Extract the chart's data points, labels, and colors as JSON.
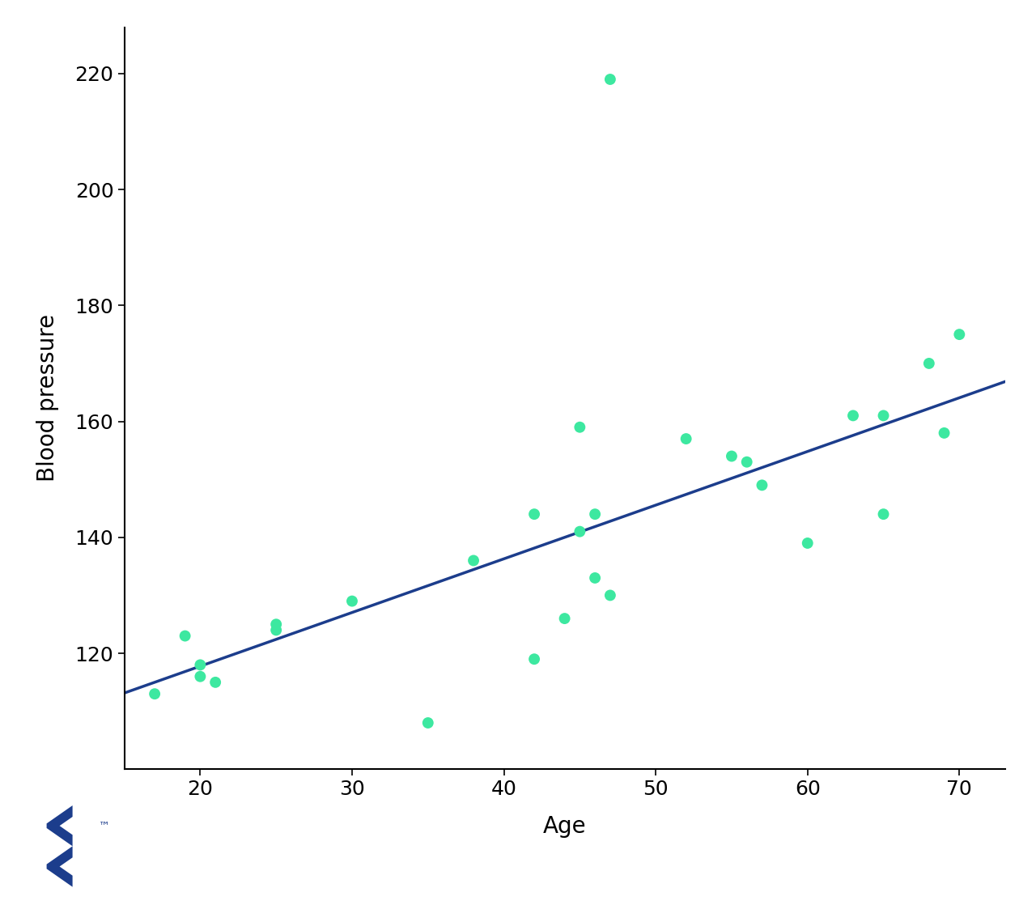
{
  "scatter_x": [
    17,
    19,
    20,
    20,
    21,
    25,
    25,
    30,
    35,
    38,
    42,
    42,
    44,
    45,
    45,
    46,
    46,
    47,
    47,
    52,
    55,
    56,
    57,
    60,
    63,
    65,
    65,
    68,
    69,
    70
  ],
  "scatter_y": [
    113,
    123,
    116,
    118,
    115,
    125,
    124,
    129,
    108,
    136,
    144,
    119,
    126,
    159,
    141,
    133,
    144,
    130,
    219,
    157,
    154,
    153,
    149,
    139,
    161,
    144,
    161,
    170,
    158,
    175
  ],
  "line_x_start": 15,
  "line_x_end": 73,
  "line_slope": 0.9259,
  "line_intercept": 99.26,
  "scatter_color": "#3de8a0",
  "line_color": "#1c3d8c",
  "xlabel": "Age",
  "ylabel": "Blood pressure",
  "xlim": [
    15,
    73
  ],
  "ylim": [
    100,
    228
  ],
  "xticks": [
    20,
    30,
    40,
    50,
    60,
    70
  ],
  "yticks": [
    120,
    140,
    160,
    180,
    200,
    220
  ],
  "scatter_size": 100,
  "line_width": 2.5,
  "xlabel_fontsize": 20,
  "ylabel_fontsize": 20,
  "tick_fontsize": 18,
  "background_color": "#ffffff",
  "logo_color": "#1c3d8c"
}
